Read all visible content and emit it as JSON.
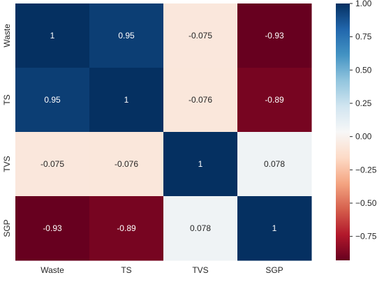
{
  "chart_data": {
    "type": "heatmap",
    "title": "",
    "xlabel": "",
    "ylabel": "",
    "x_categories": [
      "Waste",
      "TS",
      "TVS",
      "SGP"
    ],
    "y_categories": [
      "Waste",
      "TS",
      "TVS",
      "SGP"
    ],
    "values": [
      [
        1,
        0.95,
        -0.075,
        -0.93
      ],
      [
        0.95,
        1,
        -0.076,
        -0.89
      ],
      [
        -0.075,
        -0.076,
        1,
        0.078
      ],
      [
        -0.93,
        -0.89,
        0.078,
        1
      ]
    ],
    "value_labels": [
      [
        "1",
        "0.95",
        "-0.075",
        "-0.93"
      ],
      [
        "0.95",
        "1",
        "-0.076",
        "-0.89"
      ],
      [
        "-0.075",
        "-0.076",
        "1",
        "0.078"
      ],
      [
        "-0.93",
        "-0.89",
        "0.078",
        "1"
      ]
    ],
    "colormap": "RdBu",
    "color_range": [
      -0.93,
      1
    ],
    "colorbar": {
      "ticks": [
        1.0,
        0.75,
        0.5,
        0.25,
        0.0,
        -0.25,
        -0.5,
        -0.75
      ],
      "tick_labels": [
        "1.00",
        "0.75",
        "0.50",
        "0.25",
        "0.00",
        "−0.25",
        "−0.50",
        "−0.75"
      ]
    },
    "grid": false,
    "legend": "colorbar-right"
  }
}
